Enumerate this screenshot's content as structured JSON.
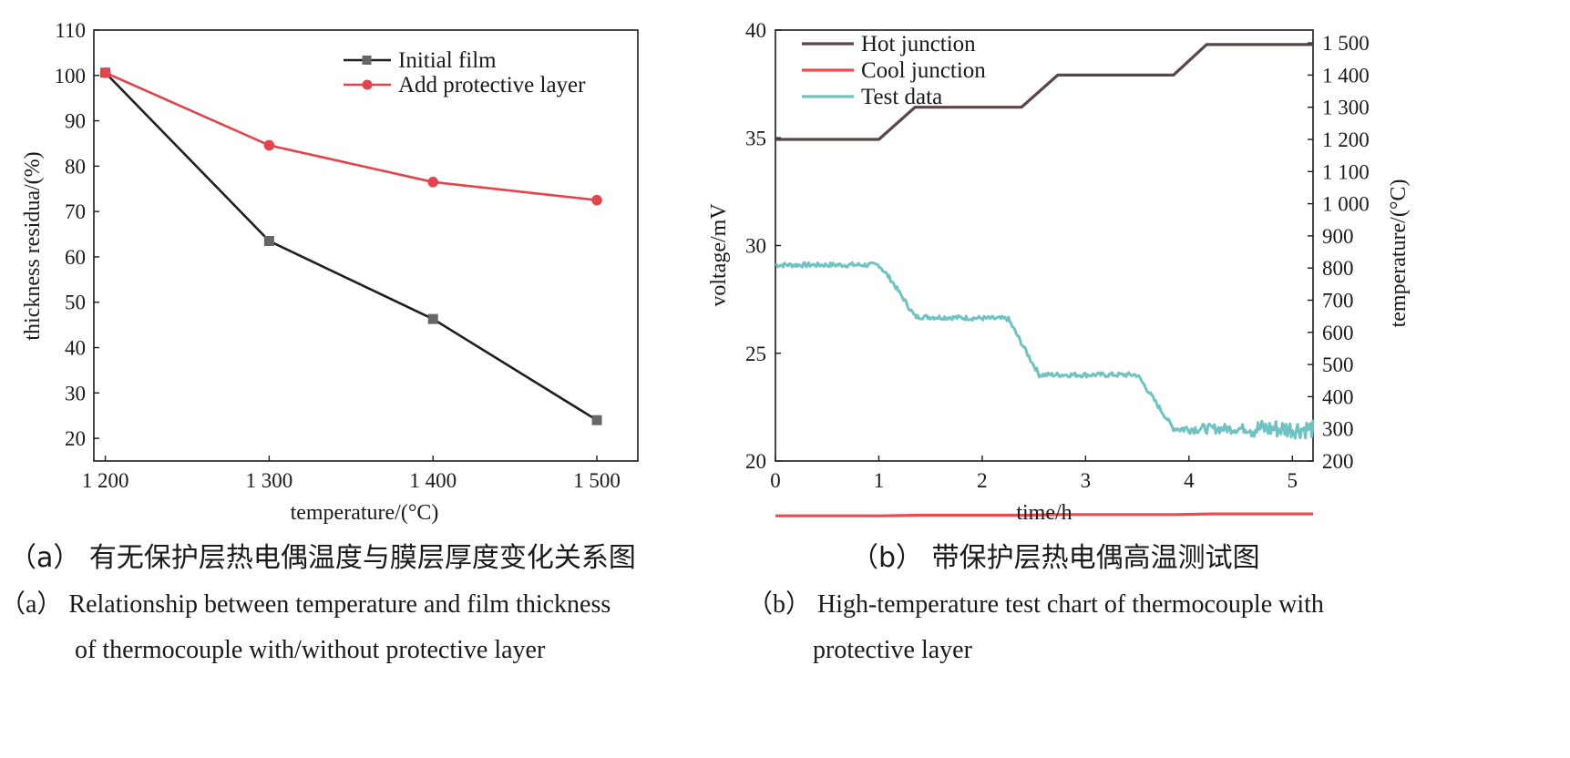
{
  "chart_data": [
    {
      "id": "a",
      "type": "line",
      "x": [
        1200,
        1300,
        1400,
        1500
      ],
      "x_tick_labels": [
        "1 200",
        "1 300",
        "1 400",
        "1 500"
      ],
      "xlabel": "temperature/(°C)",
      "ylabel": "thickness residua/(%)",
      "ylim": [
        15,
        110
      ],
      "y_ticks": [
        20,
        30,
        40,
        50,
        60,
        70,
        80,
        90,
        100,
        110
      ],
      "grid": false,
      "legend_position": "top-right",
      "series": [
        {
          "name": "Initial film",
          "values": [
            100.6,
            63.5,
            46.3,
            24.0
          ],
          "color": "#1f1f1f",
          "marker_color": "#666666",
          "marker": "square"
        },
        {
          "name": "Add protective layer",
          "values": [
            100.6,
            84.6,
            76.5,
            72.5
          ],
          "color": "#e4434b",
          "marker_color": "#e4434b",
          "marker": "circle"
        }
      ],
      "caption_cn": "（a）  有无保护层热电偶温度与膜层厚度变化关系图",
      "caption_en_line1": "（a）  Relationship between temperature and film thickness",
      "caption_en_line2": "of thermocouple with/without protective layer"
    },
    {
      "id": "b",
      "type": "line",
      "xlabel": "time/h",
      "xlim": [
        0,
        5.2
      ],
      "x_ticks": [
        0,
        1,
        2,
        3,
        4,
        5
      ],
      "ylabel": "voltage/mV",
      "ylim": [
        20,
        40
      ],
      "y_ticks": [
        20,
        25,
        30,
        35,
        40
      ],
      "y2label": "temperature/(°C)",
      "y2lim": [
        200,
        1540
      ],
      "y2_ticks": [
        200,
        300,
        400,
        500,
        600,
        700,
        800,
        900,
        1000,
        1100,
        1200,
        1300,
        1400,
        1500
      ],
      "y2_tick_labels": [
        "200",
        "300",
        "400",
        "500",
        "600",
        "700",
        "800",
        "900",
        "1 000",
        "1 100",
        "1 200",
        "1 300",
        "1 400",
        "1 500"
      ],
      "grid": false,
      "legend_position": "top-left",
      "series": [
        {
          "name": "Hot junction",
          "axis": "right",
          "color": "#5a4646",
          "x": [
            0,
            1.0,
            1.35,
            2.38,
            2.73,
            3.85,
            4.17,
            5.2
          ],
          "values": [
            1200,
            1200,
            1300,
            1300,
            1400,
            1400,
            1495,
            1495
          ]
        },
        {
          "name": "Cool junction",
          "axis": "right",
          "color": "#ec4a4f",
          "x": [
            0,
            1.03,
            1.38,
            2.4,
            2.75,
            3.87,
            4.2,
            5.2
          ],
          "values": [
            29.4,
            29.4,
            31.4,
            31.4,
            33.5,
            33.5,
            35.5,
            35.5
          ]
        },
        {
          "name": "Test data",
          "axis": "left",
          "color": "#6fc3c3",
          "x": [
            0,
            1.0,
            1.12,
            1.35,
            2.25,
            2.55,
            3.5,
            3.85,
            5.2
          ],
          "values": [
            29.1,
            29.1,
            28.4,
            26.7,
            26.6,
            24.0,
            24.0,
            21.5,
            21.5
          ]
        }
      ],
      "caption_cn": "（b）  带保护层热电偶高温测试图",
      "caption_en_line1": "（b）  High-temperature test chart of thermocouple with",
      "caption_en_line2": "protective layer"
    }
  ]
}
